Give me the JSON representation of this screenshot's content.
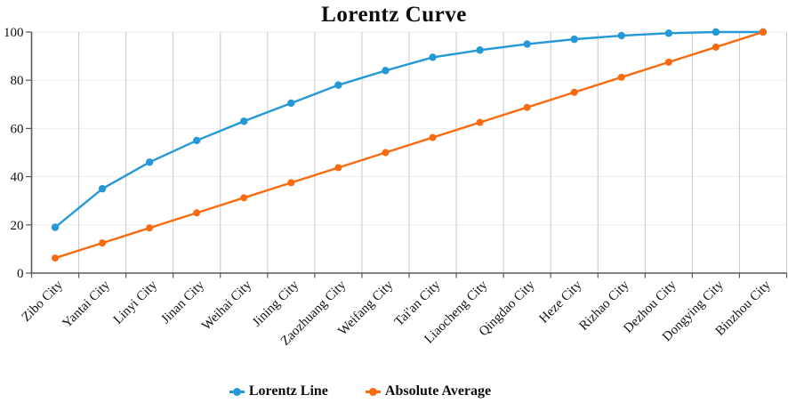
{
  "chart_data": {
    "type": "line",
    "title": "Lorentz Curve",
    "categories": [
      "Zibo City",
      "Yantai City",
      "Linyi City",
      "Jinan City",
      "Weihai City",
      "Jining City",
      "Zaozhuang City",
      "Weifang City",
      "Tai'an City",
      "Liaocheng City",
      "Qingdao City",
      "Heze City",
      "Rizhao City",
      "Dezhou City",
      "Dongying City",
      "Binzhou City"
    ],
    "series": [
      {
        "name": "Lorentz Line",
        "color": "#2499D6",
        "values": [
          19,
          35,
          46,
          55,
          63,
          70.5,
          78,
          84,
          89.5,
          92.5,
          95,
          97,
          98.5,
          99.5,
          100,
          100
        ]
      },
      {
        "name": "Absolute Average",
        "color": "#F96B0E",
        "values": [
          6.25,
          12.5,
          18.75,
          25,
          31.25,
          37.5,
          43.75,
          50,
          56.25,
          62.5,
          68.75,
          75,
          81.25,
          87.5,
          93.75,
          100
        ]
      }
    ],
    "ylim": [
      0,
      100
    ],
    "ytick_labels": [
      "0",
      "20",
      "40",
      "60",
      "80",
      "100"
    ],
    "grid": {
      "vertical": true,
      "horizontal": true
    },
    "legend_position": "bottom",
    "colors": {
      "vertical_grid": "#c9c9c9",
      "horizontal_grid": "#ededed",
      "axis": "#595959",
      "text": "#111111"
    }
  }
}
